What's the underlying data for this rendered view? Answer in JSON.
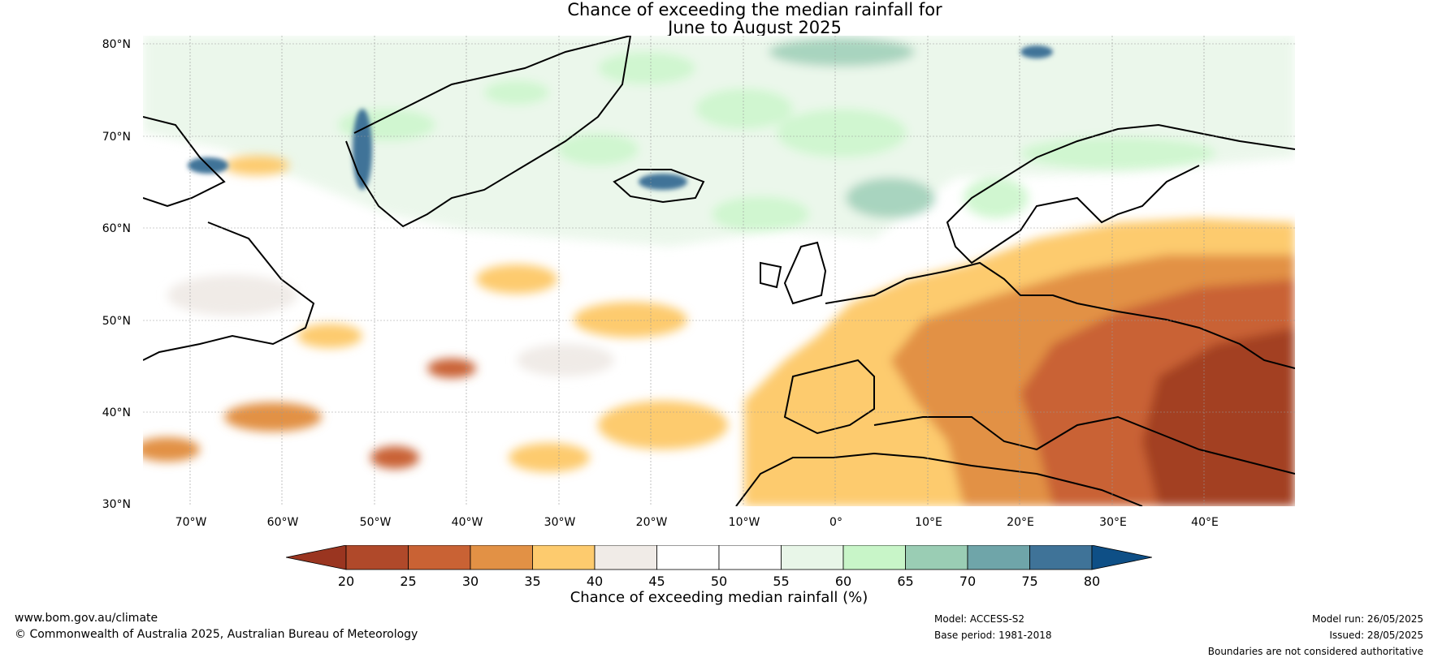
{
  "title_line1": "Chance of exceeding the median rainfall for",
  "title_line2": "June to August 2025",
  "lat_labels": [
    "80°N",
    "70°N",
    "60°N",
    "50°N",
    "40°N",
    "30°N"
  ],
  "lon_labels": [
    "70°W",
    "60°W",
    "50°W",
    "40°W",
    "30°W",
    "20°W",
    "10°W",
    "0°",
    "10°E",
    "20°E",
    "30°E",
    "40°E"
  ],
  "colorbar": {
    "ticks": [
      "20",
      "25",
      "30",
      "35",
      "40",
      "45",
      "50",
      "55",
      "60",
      "65",
      "70",
      "75",
      "80"
    ],
    "low_extend_color": "#9a3520",
    "high_extend_color": "#0e4f86",
    "bin_colors": [
      "#b0492a",
      "#c96234",
      "#e29145",
      "#fdcb6e",
      "#f0ebe7",
      "#ffffff",
      "#ffffff",
      "#e8f6e8",
      "#c8f5c8",
      "#9acdb4",
      "#6fa5a9",
      "#3f7398"
    ],
    "caption": "Chance of exceeding median rainfall (%)"
  },
  "footer": {
    "website": "www.bom.gov.au/climate",
    "copyright": "© Commonwealth of Australia 2025, Australian Bureau of Meteorology",
    "model": "Model: ACCESS-S2",
    "base_period": "Base period: 1981-2018",
    "model_run": "Model run: 26/05/2025",
    "issued": "Issued: 28/05/2025",
    "disclaimer": "Boundaries are not considered authoritative"
  }
}
